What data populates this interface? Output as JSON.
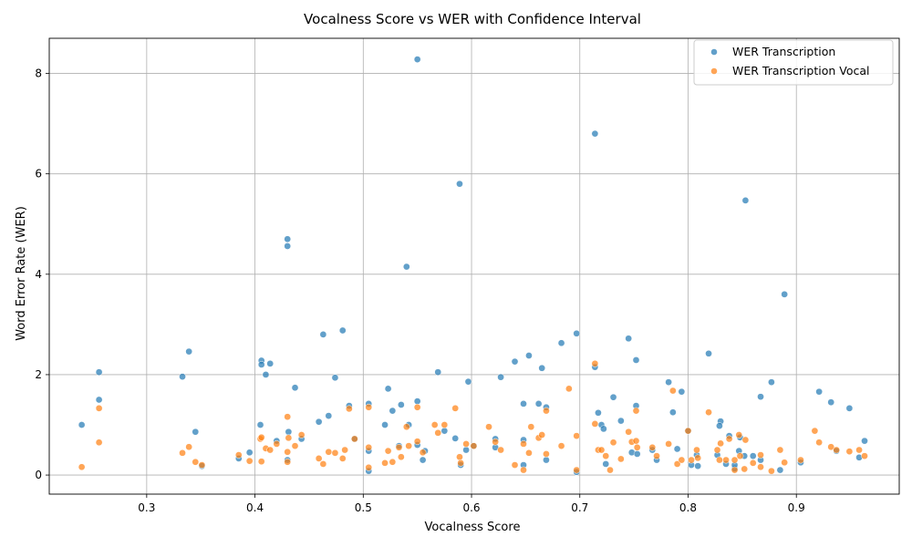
{
  "chart_data": {
    "type": "scatter",
    "title": "Vocalness Score vs WER with Confidence Interval",
    "xlabel": "Vocalness Score",
    "ylabel": "Word Error Rate (WER)",
    "xlim": [
      0.21,
      0.995
    ],
    "ylim": [
      -0.38,
      8.7
    ],
    "xticks": [
      0.3,
      0.4,
      0.5,
      0.6,
      0.7,
      0.8,
      0.9
    ],
    "yticks": [
      0,
      2,
      4,
      6,
      8
    ],
    "grid": true,
    "legend_position": "top-right",
    "series": [
      {
        "name": "WER Transcription",
        "color": "#1f77b4",
        "points": [
          [
            0.24,
            1.0
          ],
          [
            0.256,
            2.05
          ],
          [
            0.256,
            1.5
          ],
          [
            0.333,
            1.96
          ],
          [
            0.339,
            2.46
          ],
          [
            0.345,
            0.86
          ],
          [
            0.351,
            0.18
          ],
          [
            0.385,
            0.33
          ],
          [
            0.395,
            0.45
          ],
          [
            0.405,
            1.0
          ],
          [
            0.406,
            2.28
          ],
          [
            0.406,
            2.2
          ],
          [
            0.41,
            2.0
          ],
          [
            0.414,
            2.22
          ],
          [
            0.42,
            0.68
          ],
          [
            0.43,
            4.7
          ],
          [
            0.43,
            4.56
          ],
          [
            0.431,
            0.86
          ],
          [
            0.43,
            0.3
          ],
          [
            0.437,
            1.74
          ],
          [
            0.443,
            0.72
          ],
          [
            0.459,
            1.06
          ],
          [
            0.463,
            2.8
          ],
          [
            0.468,
            1.18
          ],
          [
            0.474,
            1.94
          ],
          [
            0.481,
            2.88
          ],
          [
            0.487,
            1.38
          ],
          [
            0.492,
            0.72
          ],
          [
            0.505,
            1.42
          ],
          [
            0.505,
            0.48
          ],
          [
            0.505,
            0.08
          ],
          [
            0.52,
            1.0
          ],
          [
            0.523,
            1.72
          ],
          [
            0.527,
            1.28
          ],
          [
            0.533,
            0.58
          ],
          [
            0.535,
            1.4
          ],
          [
            0.54,
            4.15
          ],
          [
            0.542,
            1.0
          ],
          [
            0.55,
            8.28
          ],
          [
            0.55,
            1.47
          ],
          [
            0.55,
            0.6
          ],
          [
            0.555,
            0.3
          ],
          [
            0.557,
            0.48
          ],
          [
            0.569,
            2.05
          ],
          [
            0.575,
            0.88
          ],
          [
            0.585,
            0.73
          ],
          [
            0.589,
            5.8
          ],
          [
            0.59,
            0.2
          ],
          [
            0.595,
            0.5
          ],
          [
            0.597,
            1.86
          ],
          [
            0.602,
            0.58
          ],
          [
            0.627,
            1.95
          ],
          [
            0.622,
            0.72
          ],
          [
            0.622,
            0.55
          ],
          [
            0.64,
            2.26
          ],
          [
            0.648,
            1.42
          ],
          [
            0.648,
            0.7
          ],
          [
            0.648,
            0.2
          ],
          [
            0.653,
            2.38
          ],
          [
            0.662,
            1.42
          ],
          [
            0.665,
            2.13
          ],
          [
            0.669,
            1.35
          ],
          [
            0.669,
            0.3
          ],
          [
            0.683,
            2.63
          ],
          [
            0.697,
            2.82
          ],
          [
            0.697,
            0.06
          ],
          [
            0.714,
            6.8
          ],
          [
            0.714,
            2.15
          ],
          [
            0.717,
            1.24
          ],
          [
            0.72,
            1.0
          ],
          [
            0.722,
            0.92
          ],
          [
            0.724,
            0.22
          ],
          [
            0.731,
            1.55
          ],
          [
            0.738,
            1.08
          ],
          [
            0.745,
            2.72
          ],
          [
            0.748,
            0.45
          ],
          [
            0.752,
            2.29
          ],
          [
            0.752,
            1.38
          ],
          [
            0.753,
            0.42
          ],
          [
            0.767,
            0.5
          ],
          [
            0.771,
            0.3
          ],
          [
            0.782,
            1.85
          ],
          [
            0.786,
            1.25
          ],
          [
            0.79,
            0.52
          ],
          [
            0.794,
            1.66
          ],
          [
            0.8,
            0.88
          ],
          [
            0.803,
            0.2
          ],
          [
            0.808,
            0.4
          ],
          [
            0.809,
            0.18
          ],
          [
            0.819,
            2.42
          ],
          [
            0.827,
            0.4
          ],
          [
            0.83,
            1.07
          ],
          [
            0.829,
            0.98
          ],
          [
            0.835,
            0.22
          ],
          [
            0.838,
            0.78
          ],
          [
            0.843,
            0.13
          ],
          [
            0.843,
            0.2
          ],
          [
            0.847,
            0.48
          ],
          [
            0.848,
            0.75
          ],
          [
            0.853,
            5.47
          ],
          [
            0.852,
            0.38
          ],
          [
            0.86,
            0.38
          ],
          [
            0.867,
            1.56
          ],
          [
            0.867,
            0.3
          ],
          [
            0.877,
            1.85
          ],
          [
            0.885,
            0.1
          ],
          [
            0.889,
            3.6
          ],
          [
            0.904,
            0.25
          ],
          [
            0.921,
            1.66
          ],
          [
            0.932,
            1.45
          ],
          [
            0.937,
            0.48
          ],
          [
            0.949,
            1.33
          ],
          [
            0.958,
            0.35
          ],
          [
            0.963,
            0.68
          ]
        ]
      },
      {
        "name": "WER Transcription Vocal",
        "color": "#ff7f0e",
        "points": [
          [
            0.24,
            0.16
          ],
          [
            0.256,
            1.33
          ],
          [
            0.256,
            0.65
          ],
          [
            0.333,
            0.44
          ],
          [
            0.339,
            0.56
          ],
          [
            0.345,
            0.26
          ],
          [
            0.351,
            0.2
          ],
          [
            0.385,
            0.4
          ],
          [
            0.395,
            0.28
          ],
          [
            0.405,
            0.72
          ],
          [
            0.406,
            0.75
          ],
          [
            0.406,
            0.27
          ],
          [
            0.41,
            0.53
          ],
          [
            0.414,
            0.5
          ],
          [
            0.42,
            0.62
          ],
          [
            0.43,
            1.16
          ],
          [
            0.43,
            0.46
          ],
          [
            0.431,
            0.74
          ],
          [
            0.43,
            0.26
          ],
          [
            0.437,
            0.58
          ],
          [
            0.443,
            0.8
          ],
          [
            0.459,
            0.33
          ],
          [
            0.463,
            0.22
          ],
          [
            0.468,
            0.46
          ],
          [
            0.474,
            0.44
          ],
          [
            0.481,
            0.33
          ],
          [
            0.483,
            0.5
          ],
          [
            0.487,
            1.32
          ],
          [
            0.492,
            0.72
          ],
          [
            0.505,
            1.35
          ],
          [
            0.505,
            0.55
          ],
          [
            0.505,
            0.15
          ],
          [
            0.52,
            0.24
          ],
          [
            0.523,
            0.48
          ],
          [
            0.527,
            0.26
          ],
          [
            0.533,
            0.55
          ],
          [
            0.535,
            0.36
          ],
          [
            0.54,
            0.96
          ],
          [
            0.542,
            0.58
          ],
          [
            0.55,
            1.35
          ],
          [
            0.55,
            0.67
          ],
          [
            0.555,
            0.45
          ],
          [
            0.566,
            1.0
          ],
          [
            0.569,
            0.84
          ],
          [
            0.575,
            1.0
          ],
          [
            0.585,
            1.33
          ],
          [
            0.589,
            0.36
          ],
          [
            0.59,
            0.24
          ],
          [
            0.595,
            0.62
          ],
          [
            0.602,
            0.58
          ],
          [
            0.616,
            0.96
          ],
          [
            0.622,
            0.66
          ],
          [
            0.627,
            0.5
          ],
          [
            0.64,
            0.2
          ],
          [
            0.648,
            0.1
          ],
          [
            0.648,
            0.62
          ],
          [
            0.653,
            0.44
          ],
          [
            0.655,
            0.96
          ],
          [
            0.662,
            0.74
          ],
          [
            0.665,
            0.8
          ],
          [
            0.669,
            1.28
          ],
          [
            0.669,
            0.42
          ],
          [
            0.683,
            0.58
          ],
          [
            0.69,
            1.72
          ],
          [
            0.697,
            0.78
          ],
          [
            0.697,
            0.1
          ],
          [
            0.714,
            2.22
          ],
          [
            0.714,
            1.02
          ],
          [
            0.717,
            0.5
          ],
          [
            0.72,
            0.5
          ],
          [
            0.724,
            0.38
          ],
          [
            0.728,
            0.1
          ],
          [
            0.731,
            0.65
          ],
          [
            0.738,
            0.32
          ],
          [
            0.745,
            0.86
          ],
          [
            0.748,
            0.66
          ],
          [
            0.752,
            1.28
          ],
          [
            0.752,
            0.68
          ],
          [
            0.753,
            0.55
          ],
          [
            0.767,
            0.55
          ],
          [
            0.771,
            0.38
          ],
          [
            0.782,
            0.62
          ],
          [
            0.786,
            1.68
          ],
          [
            0.79,
            0.22
          ],
          [
            0.794,
            0.3
          ],
          [
            0.8,
            0.88
          ],
          [
            0.803,
            0.3
          ],
          [
            0.808,
            0.5
          ],
          [
            0.809,
            0.34
          ],
          [
            0.819,
            1.25
          ],
          [
            0.827,
            0.5
          ],
          [
            0.83,
            0.63
          ],
          [
            0.829,
            0.3
          ],
          [
            0.835,
            0.3
          ],
          [
            0.838,
            0.72
          ],
          [
            0.843,
            0.1
          ],
          [
            0.843,
            0.3
          ],
          [
            0.847,
            0.8
          ],
          [
            0.848,
            0.38
          ],
          [
            0.853,
            0.7
          ],
          [
            0.852,
            0.12
          ],
          [
            0.86,
            0.24
          ],
          [
            0.867,
            0.4
          ],
          [
            0.867,
            0.16
          ],
          [
            0.877,
            0.08
          ],
          [
            0.885,
            0.5
          ],
          [
            0.889,
            0.25
          ],
          [
            0.904,
            0.3
          ],
          [
            0.917,
            0.88
          ],
          [
            0.921,
            0.65
          ],
          [
            0.932,
            0.56
          ],
          [
            0.937,
            0.5
          ],
          [
            0.949,
            0.47
          ],
          [
            0.958,
            0.5
          ],
          [
            0.963,
            0.38
          ]
        ]
      }
    ]
  }
}
